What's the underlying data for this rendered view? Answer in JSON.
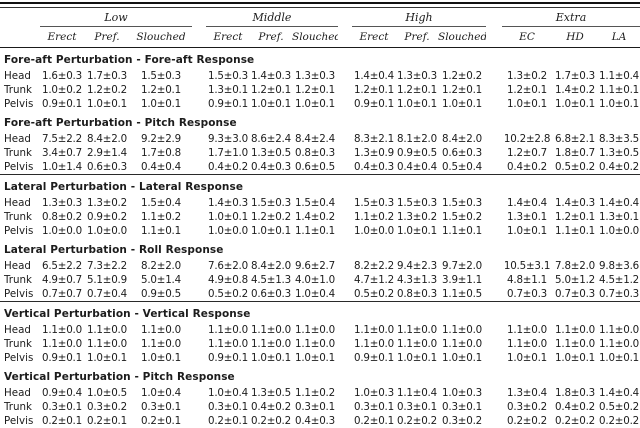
{
  "table": {
    "col_groups": [
      {
        "label": "Low",
        "cols": [
          "Erect",
          "Pref.",
          "Slouched"
        ]
      },
      {
        "label": "Middle",
        "cols": [
          "Erect",
          "Pref.",
          "Slouched"
        ]
      },
      {
        "label": "High",
        "cols": [
          "Erect",
          "Pref.",
          "Slouched"
        ]
      },
      {
        "label": "Extra",
        "cols": [
          "EC",
          "HD",
          "LA"
        ]
      }
    ],
    "sections": [
      {
        "title": "Fore-aft Perturbation - Fore-aft Response",
        "rule_after": false,
        "rows": [
          {
            "label": "Head",
            "values": [
              "1.6±0.3",
              "1.7±0.3",
              "1.5±0.3",
              "1.5±0.3",
              "1.4±0.3",
              "1.3±0.3",
              "1.4±0.4",
              "1.3±0.3",
              "1.2±0.2",
              "1.3±0.2",
              "1.7±0.3",
              "1.1±0.4"
            ]
          },
          {
            "label": "Trunk",
            "values": [
              "1.0±0.2",
              "1.2±0.2",
              "1.2±0.1",
              "1.3±0.1",
              "1.2±0.1",
              "1.2±0.1",
              "1.2±0.1",
              "1.2±0.1",
              "1.2±0.1",
              "1.2±0.1",
              "1.4±0.2",
              "1.1±0.1"
            ]
          },
          {
            "label": "Pelvis",
            "values": [
              "0.9±0.1",
              "1.0±0.1",
              "1.0±0.1",
              "0.9±0.1",
              "1.0±0.1",
              "1.0±0.1",
              "0.9±0.1",
              "1.0±0.1",
              "1.0±0.1",
              "1.0±0.1",
              "1.0±0.1",
              "1.0±0.1"
            ]
          }
        ]
      },
      {
        "title": "Fore-aft Perturbation - Pitch Response",
        "rule_after": true,
        "rows": [
          {
            "label": "Head",
            "values": [
              "7.5±2.2",
              "8.4±2.0",
              "9.2±2.9",
              "9.3±3.0",
              "8.6±2.4",
              "8.4±2.4",
              "8.3±2.1",
              "8.1±2.0",
              "8.4±2.0",
              "10.2±2.8",
              "6.8±2.1",
              "8.3±3.5"
            ]
          },
          {
            "label": "Trunk",
            "values": [
              "3.4±0.7",
              "2.9±1.4",
              "1.7±0.8",
              "1.7±1.0",
              "1.3±0.5",
              "0.8±0.3",
              "1.3±0.9",
              "0.9±0.5",
              "0.6±0.3",
              "1.2±0.7",
              "1.8±0.7",
              "1.3±0.5"
            ]
          },
          {
            "label": "Pelvis",
            "values": [
              "1.0±1.4",
              "0.6±0.3",
              "0.4±0.4",
              "0.4±0.2",
              "0.4±0.3",
              "0.6±0.5",
              "0.4±0.3",
              "0.4±0.4",
              "0.5±0.4",
              "0.4±0.2",
              "0.5±0.2",
              "0.4±0.2"
            ]
          }
        ]
      },
      {
        "title": "Lateral Perturbation - Lateral Response",
        "rule_after": false,
        "rows": [
          {
            "label": "Head",
            "values": [
              "1.3±0.3",
              "1.3±0.2",
              "1.5±0.4",
              "1.4±0.3",
              "1.5±0.3",
              "1.5±0.4",
              "1.5±0.3",
              "1.5±0.3",
              "1.5±0.3",
              "1.4±0.4",
              "1.4±0.3",
              "1.4±0.4"
            ]
          },
          {
            "label": "Trunk",
            "values": [
              "0.8±0.2",
              "0.9±0.2",
              "1.1±0.2",
              "1.0±0.1",
              "1.2±0.2",
              "1.4±0.2",
              "1.1±0.2",
              "1.3±0.2",
              "1.5±0.2",
              "1.3±0.1",
              "1.2±0.1",
              "1.3±0.1"
            ]
          },
          {
            "label": "Pelvis",
            "values": [
              "1.0±0.0",
              "1.0±0.0",
              "1.1±0.1",
              "1.0±0.0",
              "1.0±0.1",
              "1.1±0.1",
              "1.0±0.0",
              "1.0±0.1",
              "1.1±0.1",
              "1.0±0.1",
              "1.1±0.1",
              "1.0±0.0"
            ]
          }
        ]
      },
      {
        "title": "Lateral Perturbation - Roll Response",
        "rule_after": true,
        "rows": [
          {
            "label": "Head",
            "values": [
              "6.5±2.2",
              "7.3±2.2",
              "8.2±2.0",
              "7.6±2.0",
              "8.4±2.0",
              "9.6±2.7",
              "8.2±2.2",
              "9.4±2.3",
              "9.7±2.0",
              "10.5±3.1",
              "7.8±2.0",
              "9.8±3.6"
            ]
          },
          {
            "label": "Trunk",
            "values": [
              "4.9±0.7",
              "5.1±0.9",
              "5.0±1.4",
              "4.9±0.8",
              "4.5±1.3",
              "4.0±1.0",
              "4.7±1.2",
              "4.3±1.3",
              "3.9±1.1",
              "4.8±1.1",
              "5.0±1.2",
              "4.5±1.2"
            ]
          },
          {
            "label": "Pelvis",
            "values": [
              "0.7±0.7",
              "0.7±0.4",
              "0.9±0.5",
              "0.5±0.2",
              "0.6±0.3",
              "1.0±0.4",
              "0.5±0.2",
              "0.8±0.3",
              "1.1±0.5",
              "0.7±0.3",
              "0.7±0.3",
              "0.7±0.3"
            ]
          }
        ]
      },
      {
        "title": "Vertical Perturbation - Vertical Response",
        "rule_after": false,
        "rows": [
          {
            "label": "Head",
            "values": [
              "1.1±0.0",
              "1.1±0.0",
              "1.1±0.0",
              "1.1±0.0",
              "1.1±0.0",
              "1.1±0.0",
              "1.1±0.0",
              "1.1±0.0",
              "1.1±0.0",
              "1.1±0.0",
              "1.1±0.0",
              "1.1±0.0"
            ]
          },
          {
            "label": "Trunk",
            "values": [
              "1.1±0.0",
              "1.1±0.0",
              "1.1±0.0",
              "1.1±0.0",
              "1.1±0.0",
              "1.1±0.0",
              "1.1±0.0",
              "1.1±0.0",
              "1.1±0.0",
              "1.1±0.0",
              "1.1±0.0",
              "1.1±0.0"
            ]
          },
          {
            "label": "Pelvis",
            "values": [
              "0.9±0.1",
              "1.0±0.1",
              "1.0±0.1",
              "0.9±0.1",
              "1.0±0.1",
              "1.0±0.1",
              "0.9±0.1",
              "1.0±0.1",
              "1.0±0.1",
              "1.0±0.1",
              "1.0±0.1",
              "1.0±0.1"
            ]
          }
        ]
      },
      {
        "title": "Vertical Perturbation - Pitch Response",
        "rule_after": false,
        "rows": [
          {
            "label": "Head",
            "values": [
              "0.9±0.4",
              "1.0±0.5",
              "1.0±0.4",
              "1.0±0.4",
              "1.3±0.5",
              "1.1±0.2",
              "1.0±0.3",
              "1.1±0.4",
              "1.0±0.3",
              "1.3±0.4",
              "1.8±0.3",
              "1.4±0.4"
            ]
          },
          {
            "label": "Trunk",
            "values": [
              "0.3±0.1",
              "0.3±0.2",
              "0.3±0.1",
              "0.3±0.1",
              "0.4±0.2",
              "0.3±0.1",
              "0.3±0.1",
              "0.3±0.1",
              "0.3±0.1",
              "0.3±0.2",
              "0.4±0.2",
              "0.5±0.2"
            ]
          },
          {
            "label": "Pelvis",
            "values": [
              "0.2±0.1",
              "0.2±0.1",
              "0.2±0.1",
              "0.2±0.1",
              "0.2±0.2",
              "0.4±0.3",
              "0.2±0.1",
              "0.2±0.2",
              "0.3±0.2",
              "0.2±0.2",
              "0.2±0.2",
              "0.2±0.2"
            ]
          }
        ]
      }
    ]
  }
}
